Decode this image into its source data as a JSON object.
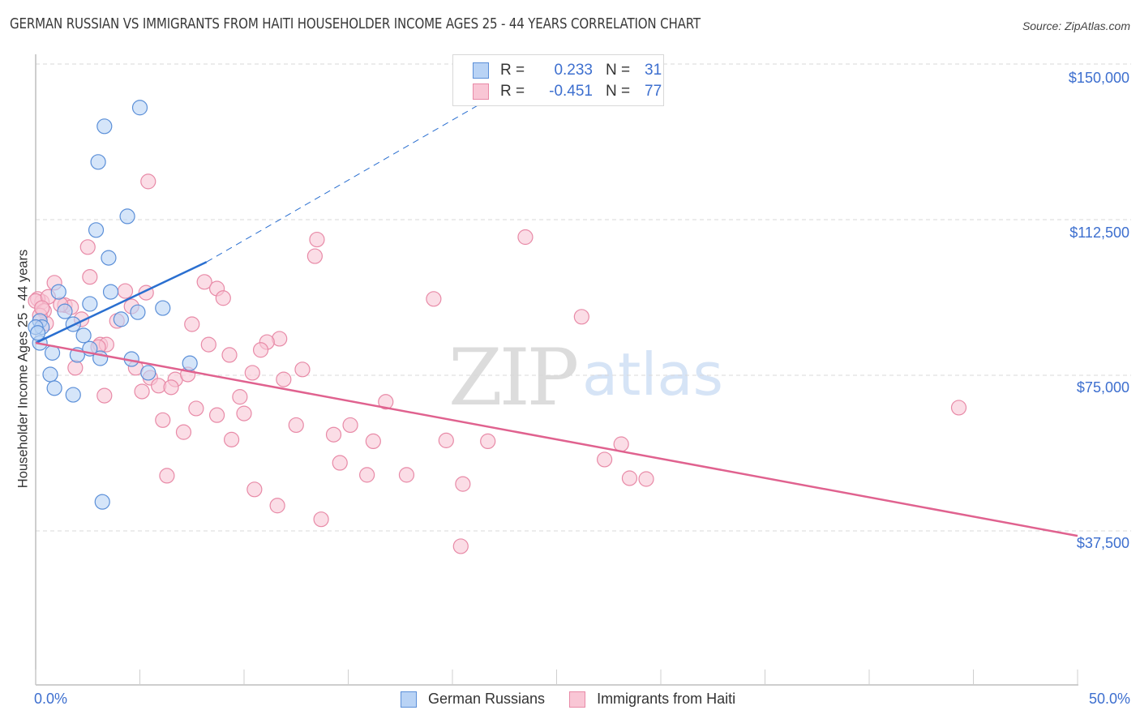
{
  "header": {
    "title": "GERMAN RUSSIAN VS IMMIGRANTS FROM HAITI HOUSEHOLDER INCOME AGES 25 - 44 YEARS CORRELATION CHART",
    "source": "Source: ZipAtlas.com"
  },
  "watermark": {
    "zip": "ZIP",
    "atlas": "atlas"
  },
  "colors": {
    "german_fill": "#b9d3f5",
    "german_stroke": "#5b8fd8",
    "german_line": "#2a6fd0",
    "haiti_fill": "#f9c6d5",
    "haiti_stroke": "#e88aa7",
    "haiti_line": "#e0628f",
    "tick_label": "#3d6fcf",
    "grid": "#d9d9d9"
  },
  "legend_top": {
    "rows": [
      {
        "r_label": "R =",
        "r_value": "0.233",
        "n_label": "N =",
        "n_value": "31"
      },
      {
        "r_label": "R =",
        "r_value": "-0.451",
        "n_label": "N =",
        "n_value": "77"
      }
    ]
  },
  "legend_bottom": {
    "items": [
      {
        "label": "German Russians"
      },
      {
        "label": "Immigrants from Haiti"
      }
    ]
  },
  "axes": {
    "ylabel": "Householder Income Ages 25 - 44 years",
    "yticks": [
      "$150,000",
      "$112,500",
      "$75,000",
      "$37,500"
    ],
    "xticks": [
      "0.0%",
      "50.0%"
    ]
  },
  "chart_data": {
    "type": "scatter",
    "title": "GERMAN RUSSIAN VS IMMIGRANTS FROM HAITI HOUSEHOLDER INCOME AGES 25 - 44 YEARS CORRELATION CHART",
    "xlabel": "",
    "ylabel": "Householder Income Ages 25 - 44 years",
    "xlim": [
      0,
      50
    ],
    "ylim": [
      0,
      152000
    ],
    "x_unit": "%",
    "yticks": [
      37500,
      75000,
      112500,
      150000
    ],
    "grid": "horizontal dashed",
    "legend_position": "bottom",
    "series": [
      {
        "name": "German Russians",
        "R": 0.233,
        "N": 31,
        "trend": {
          "x0": 0,
          "y0": 82800,
          "x1": 8.2,
          "y1": 102300,
          "dashed_extension_to": {
            "x": 25,
            "y": 151000
          }
        },
        "points": [
          [
            5.0,
            139500
          ],
          [
            3.3,
            135000
          ],
          [
            3.0,
            126400
          ],
          [
            4.4,
            113300
          ],
          [
            2.9,
            110000
          ],
          [
            3.5,
            103300
          ],
          [
            1.1,
            95100
          ],
          [
            3.6,
            95100
          ],
          [
            1.4,
            90400
          ],
          [
            2.6,
            92200
          ],
          [
            4.9,
            90200
          ],
          [
            6.1,
            91200
          ],
          [
            4.1,
            88500
          ],
          [
            0.2,
            88100
          ],
          [
            1.8,
            87300
          ],
          [
            0.3,
            86600
          ],
          [
            2.3,
            84600
          ],
          [
            0.2,
            82800
          ],
          [
            0.8,
            80400
          ],
          [
            2.0,
            79900
          ],
          [
            2.6,
            81400
          ],
          [
            3.1,
            79100
          ],
          [
            4.6,
            78900
          ],
          [
            7.4,
            77900
          ],
          [
            5.4,
            75600
          ],
          [
            0.7,
            75200
          ],
          [
            0.9,
            71900
          ],
          [
            1.8,
            70300
          ],
          [
            3.2,
            44500
          ],
          [
            0.0,
            86600
          ],
          [
            0.1,
            85200
          ]
        ]
      },
      {
        "name": "Immigrants from Haiti",
        "R": -0.451,
        "N": 77,
        "trend": {
          "x0": 0,
          "y0": 82800,
          "x1": 50,
          "y1": 36300
        },
        "points": [
          [
            5.4,
            121700
          ],
          [
            2.5,
            105900
          ],
          [
            13.5,
            107700
          ],
          [
            13.4,
            103700
          ],
          [
            23.5,
            108300
          ],
          [
            2.6,
            98700
          ],
          [
            0.9,
            97300
          ],
          [
            1.4,
            91900
          ],
          [
            0.3,
            92700
          ],
          [
            0.1,
            93400
          ],
          [
            4.3,
            95300
          ],
          [
            5.3,
            94900
          ],
          [
            4.6,
            91600
          ],
          [
            3.9,
            88100
          ],
          [
            8.1,
            97500
          ],
          [
            8.7,
            95900
          ],
          [
            9.0,
            93600
          ],
          [
            19.1,
            93400
          ],
          [
            26.2,
            89100
          ],
          [
            7.5,
            87300
          ],
          [
            0.5,
            87500
          ],
          [
            2.2,
            88500
          ],
          [
            1.7,
            91400
          ],
          [
            3.1,
            82400
          ],
          [
            3.4,
            82400
          ],
          [
            3.0,
            81800
          ],
          [
            11.7,
            83800
          ],
          [
            11.1,
            83000
          ],
          [
            10.8,
            81100
          ],
          [
            8.3,
            82400
          ],
          [
            9.3,
            79900
          ],
          [
            4.8,
            76800
          ],
          [
            1.9,
            76800
          ],
          [
            10.4,
            75600
          ],
          [
            11.9,
            74000
          ],
          [
            12.8,
            76400
          ],
          [
            5.5,
            74400
          ],
          [
            6.7,
            74000
          ],
          [
            7.3,
            75200
          ],
          [
            5.9,
            72500
          ],
          [
            6.5,
            72100
          ],
          [
            3.3,
            70100
          ],
          [
            5.1,
            71100
          ],
          [
            16.8,
            68600
          ],
          [
            9.8,
            69800
          ],
          [
            10.0,
            65800
          ],
          [
            8.7,
            65400
          ],
          [
            7.7,
            67000
          ],
          [
            6.1,
            64200
          ],
          [
            12.5,
            63000
          ],
          [
            15.1,
            63000
          ],
          [
            14.3,
            60700
          ],
          [
            16.2,
            59100
          ],
          [
            19.7,
            59300
          ],
          [
            21.7,
            59100
          ],
          [
            28.1,
            58400
          ],
          [
            9.4,
            59500
          ],
          [
            7.1,
            61300
          ],
          [
            27.3,
            54700
          ],
          [
            14.6,
            53900
          ],
          [
            15.9,
            51000
          ],
          [
            17.8,
            51000
          ],
          [
            28.5,
            50200
          ],
          [
            29.3,
            50000
          ],
          [
            20.5,
            48800
          ],
          [
            6.3,
            50800
          ],
          [
            10.5,
            47500
          ],
          [
            11.6,
            43600
          ],
          [
            13.7,
            40300
          ],
          [
            20.4,
            33800
          ],
          [
            44.3,
            67200
          ],
          [
            0.0,
            92900
          ],
          [
            0.4,
            90500
          ],
          [
            0.2,
            89400
          ],
          [
            0.6,
            93900
          ],
          [
            1.2,
            92000
          ],
          [
            0.3,
            91200
          ]
        ]
      }
    ]
  }
}
